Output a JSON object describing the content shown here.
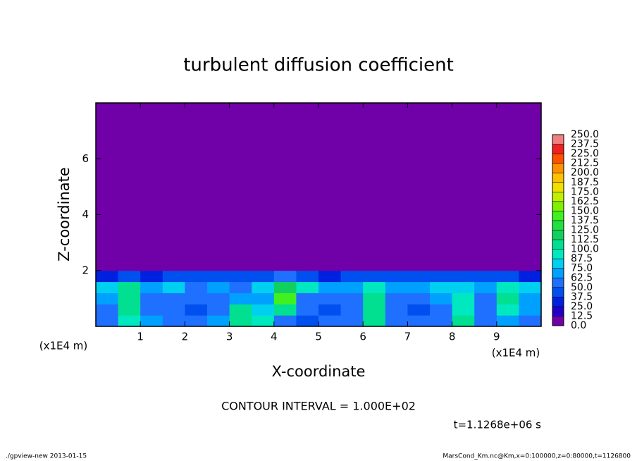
{
  "chart_data": {
    "type": "contour",
    "title": "turbulent diffusion coefficient",
    "x_label": "X-coordinate",
    "y_label": "Z-coordinate",
    "x_unit": "(x1E4 m)",
    "contour_interval": "CONTOUR INTERVAL = 1.000E+02",
    "time": "t=1.1268e+06 s",
    "footer_left": "./gpview-new  2013-01-15",
    "footer_right": "MarsCond_Km.nc@Km,x=0:100000,z=0:80000,t=1126800",
    "xlim": [
      0,
      10
    ],
    "ylim": [
      0,
      8
    ],
    "xticks": [
      1,
      2,
      3,
      4,
      5,
      6,
      7,
      8,
      9
    ],
    "yticks": [
      2,
      4,
      6
    ],
    "x_edges": [
      0,
      0.5,
      1,
      1.5,
      2,
      2.5,
      3,
      3.5,
      4,
      4.5,
      5,
      5.5,
      6,
      6.5,
      7,
      7.5,
      8,
      8.5,
      9,
      9.5,
      10
    ],
    "y_edges": [
      0,
      0.4,
      0.8,
      1.2,
      1.6,
      2.0,
      8
    ],
    "z": [
      [
        60,
        90,
        70,
        55,
        50,
        65,
        110,
        90,
        50,
        45,
        50,
        60,
        110,
        60,
        50,
        55,
        100,
        60,
        70,
        60
      ],
      [
        55,
        100,
        60,
        50,
        45,
        60,
        100,
        80,
        110,
        50,
        45,
        55,
        105,
        55,
        45,
        60,
        95,
        55,
        90,
        65
      ],
      [
        70,
        110,
        55,
        60,
        50,
        55,
        70,
        65,
        140,
        60,
        50,
        60,
        100,
        60,
        55,
        65,
        90,
        60,
        100,
        70
      ],
      [
        80,
        100,
        70,
        75,
        60,
        65,
        60,
        80,
        120,
        90,
        70,
        70,
        90,
        70,
        65,
        80,
        80,
        70,
        90,
        80
      ],
      [
        30,
        40,
        35,
        40,
        45,
        40,
        40,
        45,
        50,
        40,
        35,
        40,
        40,
        40,
        40,
        45,
        40,
        45,
        40,
        35
      ],
      [
        0,
        0,
        0,
        0,
        0,
        0,
        0,
        0,
        0,
        0,
        0,
        0,
        0,
        0,
        0,
        0,
        0,
        0,
        0,
        0
      ]
    ],
    "colorbar_ticks": [
      {
        "value": 0,
        "label": "0.0"
      },
      {
        "value": 12.5,
        "label": "12.5"
      },
      {
        "value": 25,
        "label": "25.0"
      },
      {
        "value": 37.5,
        "label": "37.5"
      },
      {
        "value": 50,
        "label": "50.0"
      },
      {
        "value": 62.5,
        "label": "62.5"
      },
      {
        "value": 75,
        "label": "75.0"
      },
      {
        "value": 87.5,
        "label": "87.5"
      },
      {
        "value": 100,
        "label": "100.0"
      },
      {
        "value": 112.5,
        "label": "112.5"
      },
      {
        "value": 125,
        "label": "125.0"
      },
      {
        "value": 137.5,
        "label": "137.5"
      },
      {
        "value": 150,
        "label": "150.0"
      },
      {
        "value": 162.5,
        "label": "162.5"
      },
      {
        "value": 175,
        "label": "175.0"
      },
      {
        "value": 187.5,
        "label": "187.5"
      },
      {
        "value": 200,
        "label": "200.0"
      },
      {
        "value": 212.5,
        "label": "212.5"
      },
      {
        "value": 225,
        "label": "225.0"
      },
      {
        "value": 237.5,
        "label": "237.5"
      },
      {
        "value": 250,
        "label": "250.0"
      }
    ],
    "colors": [
      "#7000a8",
      "#2000c8",
      "#0020e0",
      "#0050f0",
      "#2070ff",
      "#00a0ff",
      "#00d0f0",
      "#00e8c0",
      "#00e090",
      "#10d060",
      "#20e040",
      "#40f020",
      "#80f000",
      "#c0f000",
      "#f0e000",
      "#ffc000",
      "#ff9000",
      "#ff5000",
      "#f02020",
      "#f08080"
    ]
  }
}
